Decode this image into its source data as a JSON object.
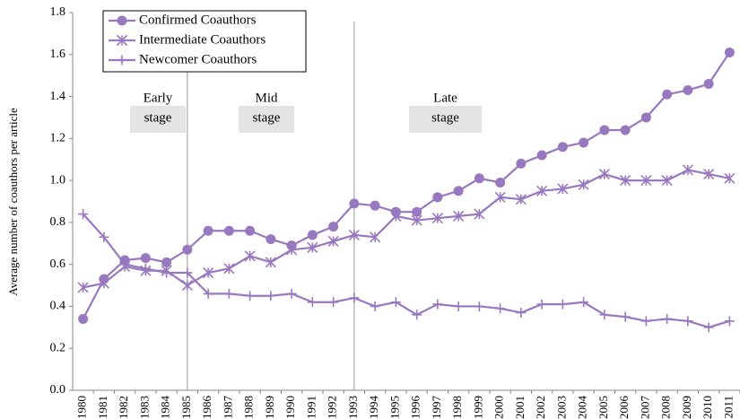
{
  "chart_data": {
    "type": "line",
    "y_label": "Average number of coauthors per article",
    "categories": [
      "1980",
      "1981",
      "1982",
      "1983",
      "1984",
      "1985",
      "1986",
      "1987",
      "1988",
      "1989",
      "1990",
      "1991",
      "1992",
      "1993",
      "1994",
      "1995",
      "1996",
      "1997",
      "1998",
      "1999",
      "2000",
      "2001",
      "2002",
      "2003",
      "2004",
      "2005",
      "2006",
      "2007",
      "2008",
      "2009",
      "2010",
      "2011"
    ],
    "series": [
      {
        "name": "Confirmed Coauthors",
        "color": "#9878bf",
        "marker": "circle",
        "values": [
          0.34,
          0.53,
          0.62,
          0.63,
          0.61,
          0.67,
          0.76,
          0.76,
          0.76,
          0.72,
          0.69,
          0.74,
          0.78,
          0.89,
          0.88,
          0.85,
          0.85,
          0.92,
          0.95,
          1.01,
          0.99,
          1.08,
          1.12,
          1.16,
          1.18,
          1.24,
          1.24,
          1.3,
          1.41,
          1.43,
          1.46,
          1.61
        ]
      },
      {
        "name": "Intermediate Coauthors",
        "color": "#9878bf",
        "marker": "asterisk",
        "values": [
          0.49,
          0.51,
          0.59,
          0.57,
          0.57,
          0.5,
          0.56,
          0.58,
          0.64,
          0.61,
          0.67,
          0.68,
          0.71,
          0.74,
          0.73,
          0.83,
          0.81,
          0.82,
          0.83,
          0.84,
          0.92,
          0.91,
          0.95,
          0.96,
          0.98,
          1.03,
          1.0,
          1.0,
          1.0,
          1.05,
          1.03,
          1.01
        ]
      },
      {
        "name": "Newcomer Coauthors",
        "color": "#9878bf",
        "marker": "plus",
        "values": [
          0.84,
          0.73,
          0.6,
          0.58,
          0.56,
          0.56,
          0.46,
          0.46,
          0.45,
          0.45,
          0.46,
          0.42,
          0.42,
          0.44,
          0.4,
          0.42,
          0.36,
          0.41,
          0.4,
          0.4,
          0.39,
          0.37,
          0.41,
          0.41,
          0.42,
          0.36,
          0.35,
          0.33,
          0.34,
          0.33,
          0.3,
          0.33
        ]
      }
    ],
    "ylim": [
      0,
      1.8
    ],
    "yticks": [
      {
        "value": 0,
        "label": "0.0"
      },
      0.2,
      0.4,
      0.6,
      0.8,
      {
        "value": 1,
        "label": "1.0"
      },
      1.2,
      1.4,
      1.6,
      1.8
    ],
    "stage_dividers": [
      "1985",
      "1993"
    ],
    "annotations": [
      {
        "lines": [
          "Early",
          "stage"
        ]
      },
      {
        "lines": [
          "Mid",
          "stage"
        ]
      },
      {
        "lines": [
          "Late",
          "stage"
        ]
      }
    ],
    "legend": "upper left"
  }
}
